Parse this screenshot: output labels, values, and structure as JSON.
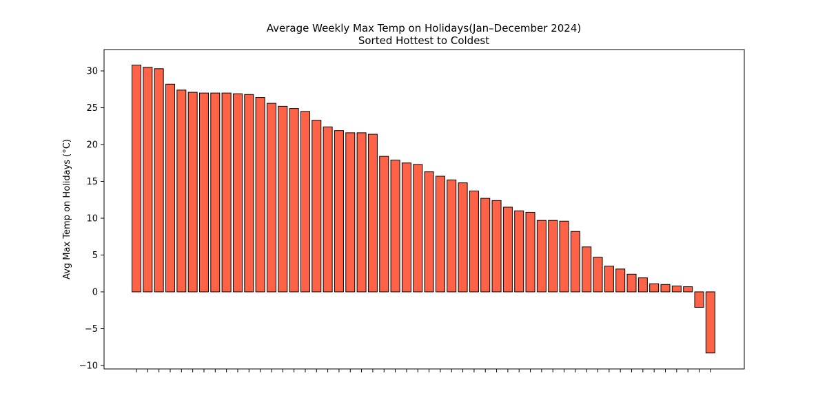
{
  "chart_data": {
    "type": "bar",
    "title": "Average Weekly Max Temp on Holidays(Jan–December 2024)",
    "subtitle": "Sorted Hottest to Coldest",
    "y_label": "Avg Max Temp on Holidays (°C)",
    "categories": [
      null,
      null,
      null,
      null,
      null,
      null,
      null,
      null,
      null,
      null,
      null,
      null,
      null,
      null,
      null,
      null,
      null,
      null,
      null,
      null,
      null,
      null,
      null,
      null,
      null,
      null,
      null,
      null,
      null,
      null,
      null,
      null,
      null,
      null,
      null,
      null,
      null,
      null,
      null,
      null,
      null,
      null,
      null,
      null,
      null,
      null,
      null,
      null,
      null,
      null,
      null,
      null
    ],
    "values": [
      30.8,
      30.5,
      30.3,
      28.2,
      27.4,
      27.1,
      27.0,
      27.0,
      27.0,
      26.9,
      26.8,
      26.4,
      25.6,
      25.2,
      24.9,
      24.5,
      23.3,
      22.4,
      21.9,
      21.6,
      21.6,
      21.4,
      18.4,
      17.9,
      17.5,
      17.3,
      16.3,
      15.7,
      15.2,
      14.8,
      13.7,
      12.7,
      12.4,
      11.5,
      11.0,
      10.8,
      9.7,
      9.7,
      9.6,
      8.2,
      6.1,
      4.7,
      3.5,
      3.1,
      2.4,
      1.9,
      1.1,
      1.0,
      0.8,
      0.7,
      -2.1,
      -8.3
    ],
    "color": "#ff6347",
    "edgecolor": "#000000",
    "ylim": [
      -10.47,
      32.9
    ],
    "yticks": [
      {
        "value": -10,
        "label": "−10"
      },
      {
        "value": -5,
        "label": "−5"
      },
      0,
      5,
      10,
      15,
      20,
      25,
      30
    ],
    "grid": false
  }
}
